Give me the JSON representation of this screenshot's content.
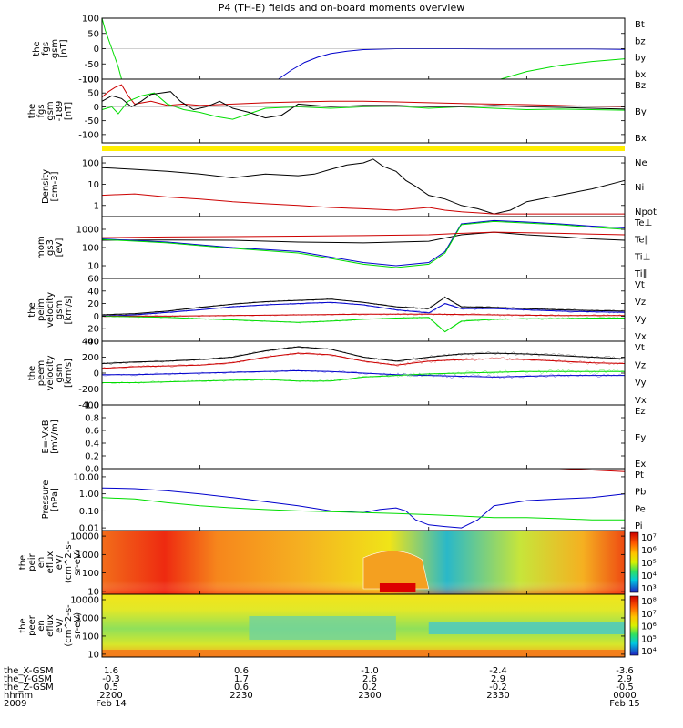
{
  "title": "P4 (TH-E) fields and on-board moments overview",
  "orbit_rows": {
    "labels": [
      "the_X-GSM",
      "the_Y-GSM",
      "the_Z-GSM",
      "hhmm",
      "2009"
    ],
    "columns": [
      [
        "1.6",
        "-0.3",
        "0.5",
        "2200",
        "Feb 14"
      ],
      [
        "0.6",
        "1.7",
        "0.6",
        "2230",
        ""
      ],
      [
        "-1.0",
        "2.6",
        "0.2",
        "2300",
        ""
      ],
      [
        "-2.4",
        "2.9",
        "-0.2",
        "2330",
        ""
      ],
      [
        "-3.6",
        "2.9",
        "-0.5",
        "0000",
        "Feb 15"
      ]
    ]
  },
  "colors": {
    "black": "#000000",
    "red": "#cc0000",
    "green": "#00dd00",
    "blue": "#0000cc",
    "yellow": "#ffee00"
  },
  "chart_data": [
    {
      "type": "line",
      "ylabel": [
        "the",
        "fgs",
        "gsm",
        "[nT]"
      ],
      "ylim": [
        -100,
        100
      ],
      "yticks": [
        "100",
        "50",
        "0",
        "-50",
        "-100"
      ],
      "legend": [
        "Bt",
        "bz",
        "by",
        "bx"
      ],
      "series": [
        {
          "name": "by",
          "x": [
            2200,
            2201,
            2203,
            2205,
            2206
          ],
          "values": [
            100,
            60,
            0,
            -60,
            -100
          ]
        },
        {
          "name": "bx",
          "x": [
            2254,
            2258,
            2262,
            2266,
            2270,
            2275,
            2280,
            2290,
            2300,
            2310,
            2320,
            2330,
            2340,
            2350,
            2360
          ],
          "values": [
            -100,
            -70,
            -45,
            -28,
            -16,
            -8,
            -3,
            0,
            0,
            0,
            -1,
            -1,
            -1,
            -1,
            -2
          ]
        },
        {
          "name": "by",
          "x": [
            2322,
            2330,
            2340,
            2350,
            2360
          ],
          "values": [
            -100,
            -75,
            -55,
            -42,
            -33
          ]
        }
      ]
    },
    {
      "type": "line",
      "ylabel": [
        "the",
        "fgs",
        "gsm",
        "-189",
        "[nT]"
      ],
      "ylim": [
        -130,
        100
      ],
      "yticks": [
        "100",
        "50",
        "0",
        "-50",
        "-100"
      ],
      "legend": [
        "Bz",
        "By",
        "Bx"
      ],
      "series": [
        {
          "name": "Bz",
          "x": [
            2200,
            2202,
            2204,
            2206,
            2208,
            2210,
            2215,
            2220,
            2225,
            2230,
            2240,
            2250,
            2260,
            2270,
            2280,
            2290,
            2300,
            2310,
            2320,
            2330,
            2340,
            2350,
            2360
          ],
          "values": [
            35,
            55,
            70,
            80,
            40,
            10,
            20,
            5,
            10,
            5,
            10,
            15,
            18,
            20,
            20,
            18,
            15,
            12,
            10,
            8,
            5,
            2,
            0
          ]
        },
        {
          "name": "By",
          "x": [
            2200,
            2203,
            2205,
            2208,
            2212,
            2216,
            2220,
            2225,
            2230,
            2235,
            2240,
            2250,
            2260,
            2270,
            2280,
            2290,
            2300,
            2310,
            2320,
            2330,
            2340,
            2350,
            2360
          ],
          "values": [
            -10,
            0,
            -25,
            20,
            40,
            50,
            10,
            -10,
            -20,
            -35,
            -45,
            -5,
            0,
            -5,
            0,
            2,
            -5,
            0,
            -5,
            -10,
            -8,
            -10,
            -12
          ]
        },
        {
          "name": "Bx",
          "x": [
            2200,
            2203,
            2206,
            2209,
            2212,
            2215,
            2218,
            2221,
            2224,
            2228,
            2232,
            2236,
            2240,
            2245,
            2250,
            2255,
            2260,
            2270,
            2280,
            2290,
            2300,
            2310,
            2320,
            2330,
            2340,
            2350,
            2360
          ],
          "values": [
            20,
            40,
            30,
            0,
            20,
            45,
            50,
            55,
            20,
            -10,
            0,
            20,
            -5,
            -20,
            -40,
            -30,
            10,
            0,
            5,
            5,
            0,
            0,
            5,
            0,
            -2,
            -5,
            -8
          ]
        }
      ]
    },
    {
      "type": "line",
      "ylabel": [
        "Density",
        "[cm-3]"
      ],
      "ylog": true,
      "ylim": [
        0.3,
        200
      ],
      "yticks": [
        "100",
        "10",
        "1"
      ],
      "legend": [
        "Ne",
        "Ni",
        "Npot"
      ],
      "series": [
        {
          "name": "Ni",
          "x": [
            2200,
            2210,
            2220,
            2230,
            2240,
            2250,
            2260,
            2265,
            2270,
            2275,
            2280,
            2283,
            2286,
            2290,
            2293,
            2296,
            2300,
            2305,
            2310,
            2315,
            2320,
            2325,
            2330,
            2340,
            2350,
            2360
          ],
          "values": [
            60,
            50,
            40,
            30,
            20,
            30,
            25,
            30,
            50,
            80,
            100,
            150,
            70,
            40,
            15,
            8,
            3,
            2,
            1,
            0.7,
            0.4,
            0.6,
            1.5,
            3,
            6,
            15
          ]
        },
        {
          "name": "Ne",
          "x": [
            2200,
            2210,
            2220,
            2230,
            2240,
            2250,
            2260,
            2270,
            2280,
            2290,
            2300,
            2305,
            2310,
            2315,
            2320,
            2330,
            2340,
            2350,
            2360
          ],
          "values": [
            3,
            3.5,
            2.5,
            2,
            1.5,
            1.2,
            1.0,
            0.8,
            0.7,
            0.6,
            0.8,
            0.6,
            0.5,
            0.45,
            0.4,
            0.4,
            0.4,
            0.4,
            0.4
          ]
        }
      ]
    },
    {
      "type": "line",
      "ylabel": [
        "mom",
        "gs3",
        "[eV]"
      ],
      "ylog": true,
      "ylim": [
        2,
        5000
      ],
      "yticks": [
        "1000",
        "100",
        "10"
      ],
      "legend": [
        "Te⊥",
        "Te∥",
        "Ti⊥",
        "Ti∥"
      ],
      "series": [
        {
          "name": "Te∥",
          "x": [
            2200,
            2220,
            2240,
            2260,
            2280,
            2290,
            2300,
            2310,
            2320,
            2330,
            2340,
            2350,
            2360
          ],
          "values": [
            250,
            260,
            250,
            200,
            180,
            200,
            220,
            500,
            700,
            500,
            400,
            300,
            250
          ]
        },
        {
          "name": "Ti⊥",
          "x": [
            2200,
            2220,
            2240,
            2260,
            2270,
            2280,
            2290,
            2300,
            2305,
            2310,
            2320,
            2330,
            2340,
            2350,
            2360
          ],
          "values": [
            300,
            200,
            100,
            60,
            30,
            15,
            10,
            15,
            60,
            2000,
            3000,
            2500,
            2000,
            1500,
            1200
          ]
        },
        {
          "name": "Ti∥",
          "x": [
            2200,
            2220,
            2240,
            2260,
            2270,
            2280,
            2290,
            2300,
            2305,
            2310,
            2320,
            2330,
            2340,
            2350,
            2360
          ],
          "values": [
            280,
            180,
            90,
            50,
            25,
            12,
            8,
            12,
            50,
            1800,
            2700,
            2200,
            1800,
            1300,
            1000
          ]
        },
        {
          "name": "Te⊥",
          "x": [
            2200,
            2220,
            2240,
            2260,
            2280,
            2300,
            2310,
            2320,
            2330,
            2340,
            2350,
            2360
          ],
          "values": [
            350,
            380,
            400,
            420,
            450,
            500,
            600,
            700,
            650,
            600,
            550,
            500
          ]
        }
      ]
    },
    {
      "type": "line",
      "ylabel": [
        "the",
        "peim",
        "velocity",
        "gsm",
        "[km/s]"
      ],
      "ylim": [
        -40,
        60
      ],
      "yticks": [
        "60",
        "40",
        "20",
        "0",
        "-20",
        "-40"
      ],
      "legend": [
        "Vt",
        "Vz",
        "Vy",
        "Vx"
      ],
      "series": [
        {
          "name": "Vt",
          "x": [
            2200,
            2210,
            2220,
            2230,
            2240,
            2250,
            2260,
            2270,
            2280,
            2290,
            2300,
            2305,
            2310,
            2320,
            2330,
            2340,
            2350,
            2360
          ],
          "values": [
            2,
            4,
            8,
            14,
            19,
            23,
            25,
            27,
            22,
            15,
            12,
            30,
            15,
            14,
            12,
            10,
            9,
            8
          ]
        },
        {
          "name": "Vx",
          "x": [
            2200,
            2210,
            2220,
            2230,
            2240,
            2250,
            2260,
            2270,
            2280,
            2290,
            2300,
            2305,
            2310,
            2320,
            2330,
            2340,
            2350,
            2360
          ],
          "values": [
            0,
            2,
            6,
            10,
            15,
            18,
            20,
            22,
            18,
            10,
            5,
            20,
            12,
            12,
            10,
            8,
            7,
            6
          ]
        },
        {
          "name": "Vz",
          "x": [
            2200,
            2220,
            2240,
            2260,
            2280,
            2300,
            2320,
            2340,
            2360
          ],
          "values": [
            0,
            0,
            1,
            2,
            3,
            3,
            2,
            1,
            1
          ]
        },
        {
          "name": "Vy",
          "x": [
            2200,
            2210,
            2220,
            2230,
            2240,
            2250,
            2260,
            2270,
            2280,
            2290,
            2300,
            2305,
            2310,
            2320,
            2330,
            2340,
            2350,
            2360
          ],
          "values": [
            0,
            -1,
            -2,
            -4,
            -6,
            -8,
            -10,
            -8,
            -5,
            -3,
            -2,
            -25,
            -8,
            -5,
            -4,
            -4,
            -3,
            -3
          ]
        }
      ]
    },
    {
      "type": "line",
      "ylabel": [
        "the",
        "peem",
        "velocity",
        "gsm",
        "[km/s]"
      ],
      "ylim": [
        -400,
        400
      ],
      "yticks": [
        "400",
        "200",
        "0",
        "-200",
        "-400"
      ],
      "legend": [
        "Vt",
        "Vz",
        "Vy",
        "Vx"
      ],
      "series": [
        {
          "name": "Vt",
          "x": [
            2200,
            2210,
            2220,
            2230,
            2240,
            2250,
            2260,
            2270,
            2280,
            2290,
            2300,
            2310,
            2320,
            2330,
            2340,
            2350,
            2360
          ],
          "values": [
            120,
            140,
            150,
            170,
            200,
            280,
            330,
            300,
            200,
            150,
            200,
            240,
            250,
            240,
            220,
            200,
            180
          ]
        },
        {
          "name": "Vz",
          "x": [
            2200,
            2210,
            2220,
            2230,
            2240,
            2250,
            2260,
            2270,
            2280,
            2290,
            2300,
            2310,
            2320,
            2330,
            2340,
            2350,
            2360
          ],
          "values": [
            60,
            80,
            90,
            100,
            130,
            200,
            250,
            230,
            150,
            100,
            150,
            170,
            180,
            170,
            150,
            130,
            120
          ]
        },
        {
          "name": "Vx",
          "x": [
            2200,
            2210,
            2220,
            2230,
            2240,
            2250,
            2260,
            2270,
            2280,
            2290,
            2300,
            2310,
            2320,
            2330,
            2340,
            2350,
            2360
          ],
          "values": [
            -20,
            -20,
            -10,
            0,
            10,
            20,
            30,
            20,
            0,
            -20,
            -30,
            -40,
            -50,
            -40,
            -30,
            -30,
            -30
          ]
        },
        {
          "name": "Vy",
          "x": [
            2200,
            2210,
            2220,
            2230,
            2240,
            2250,
            2260,
            2270,
            2280,
            2290,
            2300,
            2310,
            2320,
            2330,
            2340,
            2350,
            2360
          ],
          "values": [
            -120,
            -120,
            -110,
            -100,
            -90,
            -80,
            -100,
            -100,
            -50,
            -30,
            -10,
            0,
            10,
            20,
            20,
            20,
            20
          ]
        }
      ]
    },
    {
      "type": "line",
      "ylabel": [
        "E=-VxB",
        "[mV/m]"
      ],
      "ylim": [
        0,
        1
      ],
      "yticks": [
        "1.0",
        "0.8",
        "0.6",
        "0.4",
        "0.2",
        "0.0"
      ],
      "legend": [
        "Ez",
        "Ey",
        "Ex"
      ],
      "series": []
    },
    {
      "type": "line",
      "ylabel": [
        "Pressure",
        "[nPa]"
      ],
      "ylog": true,
      "ylim": [
        0.007,
        30
      ],
      "yticks": [
        "10.00",
        "1.00",
        "0.10",
        "0.01"
      ],
      "legend": [
        "Pt",
        "Pb",
        "Pe",
        "Pi"
      ],
      "series": [
        {
          "name": "Pi",
          "x": [
            2200,
            2210,
            2220,
            2230,
            2240,
            2250,
            2260,
            2270,
            2280,
            2285,
            2290,
            2293,
            2296,
            2300,
            2305,
            2310,
            2315,
            2320,
            2330,
            2340,
            2350,
            2360
          ],
          "values": [
            2.2,
            2.0,
            1.5,
            1.0,
            0.6,
            0.35,
            0.2,
            0.1,
            0.08,
            0.12,
            0.15,
            0.1,
            0.03,
            0.015,
            0.012,
            0.01,
            0.03,
            0.2,
            0.4,
            0.5,
            0.6,
            1.0
          ]
        },
        {
          "name": "Pe",
          "x": [
            2200,
            2210,
            2220,
            2230,
            2240,
            2250,
            2260,
            2270,
            2280,
            2290,
            2300,
            2310,
            2320,
            2330,
            2340,
            2350,
            2360
          ],
          "values": [
            0.6,
            0.5,
            0.3,
            0.2,
            0.15,
            0.12,
            0.1,
            0.09,
            0.08,
            0.07,
            0.06,
            0.05,
            0.04,
            0.04,
            0.035,
            0.03,
            0.03
          ]
        },
        {
          "name": "Pb",
          "x": [
            2340,
            2350,
            2360
          ],
          "values": [
            30,
            25,
            20
          ]
        }
      ]
    },
    {
      "type": "heatmap",
      "ylabel": [
        "the",
        "peir",
        "en",
        "eflux",
        "eV/",
        "(cm^2-s-",
        "sr-eV)"
      ],
      "ylog": true,
      "ylim": [
        7,
        20000
      ],
      "yticks": [
        "10000",
        "1000",
        "100",
        "10"
      ],
      "colorbar_labels": [
        "10⁷",
        "10⁶",
        "10⁵",
        "10⁴",
        "10³"
      ]
    },
    {
      "type": "heatmap",
      "ylabel": [
        "the",
        "peer",
        "en",
        "eflux",
        "eV/",
        "(cm^2-s-",
        "sr-eV)"
      ],
      "ylog": true,
      "ylim": [
        7,
        20000
      ],
      "yticks": [
        "10000",
        "1000",
        "100",
        "10"
      ],
      "colorbar_labels": [
        "10⁸",
        "10⁷",
        "10⁶",
        "10⁵",
        "10⁴"
      ]
    }
  ]
}
